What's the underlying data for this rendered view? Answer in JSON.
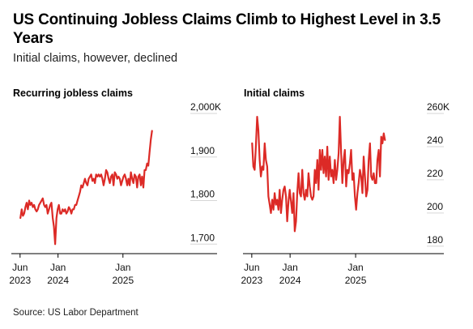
{
  "title": "US Continuing Jobless Claims Climb to Highest Level in 3.5 Years",
  "subtitle": "Initial claims, however, declined",
  "source": "Source: US Labor Department",
  "colors": {
    "line": "#dc2a26",
    "grid": "#d6d6d6",
    "axis": "#000000"
  },
  "chart_data": [
    {
      "type": "line",
      "title": "Recurring jobless claims",
      "xlabel": "",
      "ylabel": "",
      "x_ticks": [
        {
          "date": "2023-06-01",
          "line1": "Jun",
          "line2": "2023"
        },
        {
          "date": "2024-01-01",
          "line1": "Jan",
          "line2": "2024"
        },
        {
          "date": "2025-01-01",
          "line1": "Jan",
          "line2": "2025"
        }
      ],
      "y_ticks": [
        {
          "value": 2000,
          "label": "2,000K"
        },
        {
          "value": 1900,
          "label": "1,900"
        },
        {
          "value": 1800,
          "label": "1,800"
        },
        {
          "value": 1700,
          "label": "1,700"
        }
      ],
      "xlim": [
        "2023-05-01",
        "2025-12-15"
      ],
      "ylim": [
        1680,
        2000
      ],
      "grid": true,
      "series": [
        {
          "color": "#dc2a26",
          "x": [
            "2023-06-03",
            "2023-06-10",
            "2023-06-17",
            "2023-06-24",
            "2023-07-01",
            "2023-07-08",
            "2023-07-15",
            "2023-07-22",
            "2023-07-29",
            "2023-08-05",
            "2023-08-12",
            "2023-08-19",
            "2023-08-26",
            "2023-09-02",
            "2023-09-09",
            "2023-09-16",
            "2023-09-23",
            "2023-09-30",
            "2023-10-07",
            "2023-10-14",
            "2023-10-21",
            "2023-10-28",
            "2023-11-04",
            "2023-11-11",
            "2023-11-18",
            "2023-11-25",
            "2023-12-02",
            "2023-12-09",
            "2023-12-16",
            "2023-12-23",
            "2023-12-30",
            "2024-01-06",
            "2024-01-13",
            "2024-01-20",
            "2024-01-27",
            "2024-02-03",
            "2024-02-10",
            "2024-02-17",
            "2024-02-24",
            "2024-03-02",
            "2024-03-09",
            "2024-03-16",
            "2024-03-23",
            "2024-03-30",
            "2024-04-06",
            "2024-04-13",
            "2024-04-20",
            "2024-04-27",
            "2024-05-04",
            "2024-05-11",
            "2024-05-18",
            "2024-05-25",
            "2024-06-01",
            "2024-06-08",
            "2024-06-15",
            "2024-06-22",
            "2024-06-29",
            "2024-07-06",
            "2024-07-13",
            "2024-07-20",
            "2024-07-27",
            "2024-08-03",
            "2024-08-10",
            "2024-08-17",
            "2024-08-24",
            "2024-08-31",
            "2024-09-07",
            "2024-09-14",
            "2024-09-21",
            "2024-09-28",
            "2024-10-05",
            "2024-10-12",
            "2024-10-19",
            "2024-10-26",
            "2024-11-02",
            "2024-11-09",
            "2024-11-16",
            "2024-11-23",
            "2024-11-30",
            "2024-12-07",
            "2024-12-14",
            "2024-12-21",
            "2024-12-28",
            "2025-01-04",
            "2025-01-11",
            "2025-01-18",
            "2025-01-25",
            "2025-02-01",
            "2025-02-08",
            "2025-02-15",
            "2025-02-22",
            "2025-03-01",
            "2025-03-08",
            "2025-03-15",
            "2025-03-22",
            "2025-03-29",
            "2025-04-05",
            "2025-04-12",
            "2025-04-19",
            "2025-04-26",
            "2025-05-03",
            "2025-05-10",
            "2025-05-17",
            "2025-05-24",
            "2025-05-31",
            "2025-06-07",
            "2025-06-14"
          ],
          "values": [
            1760,
            1780,
            1765,
            1770,
            1785,
            1795,
            1780,
            1800,
            1790,
            1795,
            1785,
            1790,
            1780,
            1775,
            1780,
            1790,
            1795,
            1800,
            1805,
            1790,
            1785,
            1790,
            1770,
            1780,
            1790,
            1795,
            1760,
            1740,
            1700,
            1760,
            1780,
            1790,
            1770,
            1770,
            1780,
            1775,
            1780,
            1770,
            1775,
            1785,
            1780,
            1770,
            1780,
            1780,
            1790,
            1790,
            1800,
            1810,
            1820,
            1835,
            1830,
            1840,
            1850,
            1840,
            1835,
            1850,
            1855,
            1860,
            1845,
            1850,
            1840,
            1860,
            1855,
            1860,
            1855,
            1860,
            1850,
            1835,
            1850,
            1870,
            1865,
            1850,
            1840,
            1855,
            1860,
            1835,
            1865,
            1860,
            1850,
            1855,
            1850,
            1835,
            1845,
            1855,
            1860,
            1850,
            1835,
            1850,
            1835,
            1865,
            1850,
            1840,
            1860,
            1855,
            1830,
            1855,
            1860,
            1835,
            1855,
            1830,
            1870,
            1870,
            1885,
            1880,
            1910,
            1940,
            1960
          ]
        }
      ]
    },
    {
      "type": "line",
      "title": "Initial claims",
      "xlabel": "",
      "ylabel": "",
      "x_ticks": [
        {
          "date": "2023-06-01",
          "line1": "Jun",
          "line2": "2023"
        },
        {
          "date": "2024-01-01",
          "line1": "Jan",
          "line2": "2024"
        },
        {
          "date": "2025-01-01",
          "line1": "Jan",
          "line2": "2025"
        }
      ],
      "y_ticks": [
        {
          "value": 260,
          "label": "260K"
        },
        {
          "value": 240,
          "label": "240"
        },
        {
          "value": 220,
          "label": "220"
        },
        {
          "value": 200,
          "label": "200"
        },
        {
          "value": 180,
          "label": "180"
        }
      ],
      "xlim": [
        "2023-05-01",
        "2025-12-15"
      ],
      "ylim": [
        176,
        260
      ],
      "grid": true,
      "series": [
        {
          "color": "#dc2a26",
          "x": [
            "2023-06-03",
            "2023-06-10",
            "2023-06-17",
            "2023-06-24",
            "2023-07-01",
            "2023-07-08",
            "2023-07-15",
            "2023-07-22",
            "2023-07-29",
            "2023-08-05",
            "2023-08-12",
            "2023-08-19",
            "2023-08-26",
            "2023-09-02",
            "2023-09-09",
            "2023-09-16",
            "2023-09-23",
            "2023-09-30",
            "2023-10-07",
            "2023-10-14",
            "2023-10-21",
            "2023-10-28",
            "2023-11-04",
            "2023-11-11",
            "2023-11-18",
            "2023-11-25",
            "2023-12-02",
            "2023-12-09",
            "2023-12-16",
            "2023-12-23",
            "2023-12-30",
            "2024-01-06",
            "2024-01-13",
            "2024-01-20",
            "2024-01-27",
            "2024-02-03",
            "2024-02-10",
            "2024-02-17",
            "2024-02-24",
            "2024-03-02",
            "2024-03-09",
            "2024-03-16",
            "2024-03-23",
            "2024-03-30",
            "2024-04-06",
            "2024-04-13",
            "2024-04-20",
            "2024-04-27",
            "2024-05-04",
            "2024-05-11",
            "2024-05-18",
            "2024-05-25",
            "2024-06-01",
            "2024-06-08",
            "2024-06-15",
            "2024-06-22",
            "2024-06-29",
            "2024-07-06",
            "2024-07-13",
            "2024-07-20",
            "2024-07-27",
            "2024-08-03",
            "2024-08-10",
            "2024-08-17",
            "2024-08-24",
            "2024-08-31",
            "2024-09-07",
            "2024-09-14",
            "2024-09-21",
            "2024-09-28",
            "2024-10-05",
            "2024-10-12",
            "2024-10-19",
            "2024-10-26",
            "2024-11-02",
            "2024-11-09",
            "2024-11-16",
            "2024-11-23",
            "2024-11-30",
            "2024-12-07",
            "2024-12-14",
            "2024-12-21",
            "2024-12-28",
            "2025-01-04",
            "2025-01-11",
            "2025-01-18",
            "2025-01-25",
            "2025-02-01",
            "2025-02-08",
            "2025-02-15",
            "2025-02-22",
            "2025-03-01",
            "2025-03-08",
            "2025-03-15",
            "2025-03-22",
            "2025-03-29",
            "2025-04-05",
            "2025-04-12",
            "2025-04-19",
            "2025-04-26",
            "2025-05-03",
            "2025-05-10",
            "2025-05-17",
            "2025-05-24",
            "2025-05-31",
            "2025-06-07",
            "2025-06-14"
          ],
          "values": [
            242,
            228,
            226,
            240,
            258,
            250,
            232,
            222,
            228,
            226,
            242,
            232,
            228,
            210,
            205,
            200,
            208,
            202,
            212,
            205,
            208,
            202,
            214,
            200,
            208,
            214,
            216,
            210,
            195,
            207,
            214,
            207,
            200,
            212,
            189,
            195,
            212,
            224,
            212,
            210,
            226,
            212,
            208,
            214,
            210,
            224,
            216,
            210,
            208,
            210,
            226,
            218,
            232,
            214,
            238,
            226,
            238,
            224,
            234,
            222,
            240,
            220,
            234,
            222,
            226,
            218,
            232,
            220,
            226,
            236,
            258,
            236,
            218,
            232,
            238,
            216,
            226,
            224,
            230,
            238,
            220,
            224,
            210,
            202,
            212,
            218,
            226,
            222,
            212,
            234,
            222,
            210,
            214,
            232,
            242,
            222,
            220,
            224,
            218,
            218,
            232,
            238,
            222,
            246,
            242,
            248,
            244
          ]
        }
      ]
    }
  ]
}
